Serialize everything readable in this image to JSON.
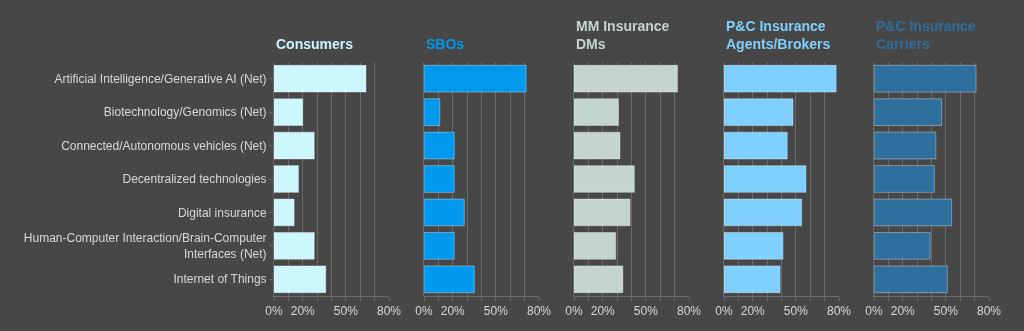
{
  "chart_data": [
    {
      "type": "bar",
      "orientation": "horizontal",
      "title": "Consumers",
      "categories": [
        "Artificial Intelligence/Generative AI (Net)",
        "Biotechnology/Genomics (Net)",
        "Connected/Autonomous vehicles (Net)",
        "Decentralized technologies",
        "Digital insurance",
        "Human-Computer Interaction/Brain-Computer Interfaces (Net)",
        "Internet of Things"
      ],
      "values": [
        64,
        20,
        28,
        17,
        14,
        28,
        36
      ],
      "color": "#ccf7ff",
      "xlim": [
        0,
        80
      ],
      "xticks": [
        {
          "value": 0,
          "label": "0%"
        },
        {
          "value": 10,
          "label": null
        },
        {
          "value": 20,
          "label": "20%"
        },
        {
          "value": 30,
          "label": null
        },
        {
          "value": 40,
          "label": null
        },
        {
          "value": 50,
          "label": "50%"
        },
        {
          "value": 60,
          "label": null
        },
        {
          "value": 70,
          "label": null
        },
        {
          "value": 80,
          "label": "80%"
        }
      ],
      "grid": "x"
    },
    {
      "type": "bar",
      "orientation": "horizontal",
      "title": "SBOs",
      "categories": [
        null,
        null,
        null,
        null,
        null,
        null,
        null
      ],
      "values": [
        71,
        11,
        21,
        21,
        28,
        21,
        35
      ],
      "color": "#0099ee",
      "xlim": [
        0,
        80
      ],
      "xticks": [
        {
          "value": 0,
          "label": "0%"
        },
        {
          "value": 10,
          "label": null
        },
        {
          "value": 20,
          "label": "20%"
        },
        {
          "value": 30,
          "label": null
        },
        {
          "value": 40,
          "label": null
        },
        {
          "value": 50,
          "label": "50%"
        },
        {
          "value": 60,
          "label": null
        },
        {
          "value": 70,
          "label": null
        },
        {
          "value": 80,
          "label": "80%"
        }
      ],
      "grid": "x",
      "tick_labels": "x"
    },
    {
      "type": "bar",
      "orientation": "horizontal",
      "title": "MM Insurance DMs",
      "categories": [
        null,
        null,
        null,
        null,
        null,
        null,
        null
      ],
      "values": [
        72,
        31,
        32,
        42,
        39,
        29,
        34
      ],
      "color": "#c4d4cf",
      "xlim": [
        0,
        80
      ],
      "xticks": [
        {
          "value": 0,
          "label": "0%"
        },
        {
          "value": 10,
          "label": null
        },
        {
          "value": 20,
          "label": "20%"
        },
        {
          "value": 30,
          "label": null
        },
        {
          "value": 40,
          "label": null
        },
        {
          "value": 50,
          "label": "50%"
        },
        {
          "value": 60,
          "label": null
        },
        {
          "value": 70,
          "label": null
        },
        {
          "value": 80,
          "label": "80%"
        }
      ],
      "grid": "x",
      "tick_labels": "x"
    },
    {
      "type": "bar",
      "orientation": "horizontal",
      "title": "P&C Insurance Agents/Brokers",
      "categories": [
        null,
        null,
        null,
        null,
        null,
        null,
        null
      ],
      "values": [
        78,
        48,
        44,
        57,
        54,
        41,
        39
      ],
      "color": "#7fd0ff",
      "xlim": [
        0,
        80
      ],
      "xticks": [
        {
          "value": 0,
          "label": "0%"
        },
        {
          "value": 10,
          "label": null
        },
        {
          "value": 20,
          "label": "20%"
        },
        {
          "value": 30,
          "label": null
        },
        {
          "value": 40,
          "label": null
        },
        {
          "value": 50,
          "label": "50%"
        },
        {
          "value": 60,
          "label": null
        },
        {
          "value": 70,
          "label": null
        },
        {
          "value": 80,
          "label": "80%"
        }
      ],
      "grid": "x",
      "tick_labels": "x"
    },
    {
      "type": "bar",
      "orientation": "horizontal",
      "title": "P&C Insurance Carriers",
      "categories": [
        null,
        null,
        null,
        null,
        null,
        null,
        null
      ],
      "values": [
        71,
        47,
        43,
        42,
        54,
        39,
        51
      ],
      "color": "#2e6f9e",
      "xlim": [
        0,
        80
      ],
      "xticks": [
        {
          "value": 0,
          "label": "0%"
        },
        {
          "value": 10,
          "label": null
        },
        {
          "value": 20,
          "label": "20%"
        },
        {
          "value": 30,
          "label": null
        },
        {
          "value": 40,
          "label": null
        },
        {
          "value": 50,
          "label": "50%"
        },
        {
          "value": 60,
          "label": null
        },
        {
          "value": 70,
          "label": null
        },
        {
          "value": 80,
          "label": "80%"
        }
      ],
      "grid": "x",
      "tick_labels": "x"
    }
  ]
}
